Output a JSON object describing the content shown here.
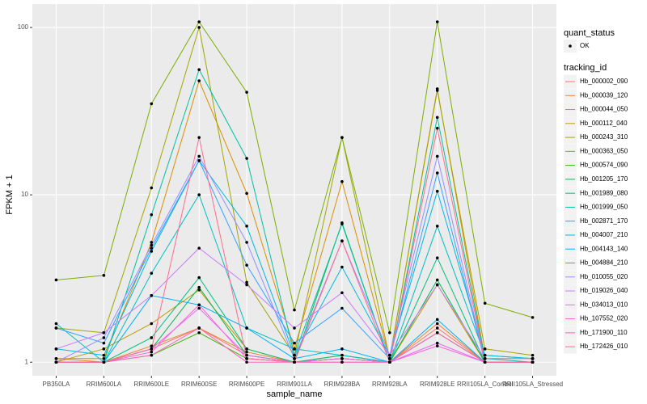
{
  "chart_data": {
    "type": "line",
    "x_label": "sample_name",
    "y_label": "FPKM + 1",
    "log_y": true,
    "grid": true,
    "categories": [
      "PB350LA",
      "RRIM600LA",
      "RRIM600LE",
      "RRIM600SE",
      "RRIM600PE",
      "RRIM901LA",
      "RRIM928BA",
      "RRIM928LA",
      "RRIM928LE",
      "RRII105LA_Control",
      "RRII105LA_Stressed"
    ],
    "ylim": [
      0.83,
      138
    ],
    "yticks": [
      1,
      10,
      100
    ],
    "shape_legend": {
      "title": "quant_status",
      "labels": [
        "OK"
      ]
    },
    "color_legend_title": "tracking_id",
    "series": [
      {
        "name": "Hb_000002_090",
        "color": "#F8766D",
        "values": [
          1.0,
          1.0,
          1.2,
          1.6,
          1.1,
          1.0,
          1.05,
          1.0,
          1.6,
          1.0,
          1.0
        ]
      },
      {
        "name": "Hb_000039_120",
        "color": "#EA8331",
        "values": [
          1.05,
          1.0,
          1.25,
          1.6,
          1.15,
          1.0,
          1.05,
          1.0,
          1.7,
          1.0,
          1.0
        ]
      },
      {
        "name": "Hb_000044_050",
        "color": "#D89000",
        "values": [
          1.05,
          1.05,
          5.2,
          48,
          10.2,
          1.2,
          12,
          1.05,
          43,
          1.05,
          1.05
        ]
      },
      {
        "name": "Hb_000112_040",
        "color": "#C09B00",
        "values": [
          1.0,
          1.2,
          1.7,
          2.7,
          1.2,
          1.0,
          1.1,
          1.0,
          2.9,
          1.0,
          1.0
        ]
      },
      {
        "name": "Hb_000243_310",
        "color": "#A3A500",
        "values": [
          1.6,
          1.5,
          11,
          100,
          3.0,
          1.1,
          22,
          1.05,
          42,
          1.2,
          1.1
        ]
      },
      {
        "name": "Hb_000363_050",
        "color": "#7CAE00",
        "values": [
          3.1,
          3.3,
          35,
          108,
          41,
          2.05,
          22,
          1.5,
          108,
          2.25,
          1.85
        ]
      },
      {
        "name": "Hb_000574_090",
        "color": "#39B600",
        "values": [
          1.0,
          1.0,
          1.1,
          1.5,
          1.05,
          1.0,
          1.05,
          1.0,
          1.5,
          1.0,
          1.0
        ]
      },
      {
        "name": "Hb_001205_170",
        "color": "#00BB4E",
        "values": [
          1.0,
          1.0,
          1.2,
          2.8,
          1.1,
          1.0,
          6.8,
          1.0,
          3.1,
          1.0,
          1.0
        ]
      },
      {
        "name": "Hb_001989_080",
        "color": "#00BF7D",
        "values": [
          1.0,
          1.0,
          1.4,
          3.2,
          1.2,
          1.0,
          1.1,
          1.0,
          4.2,
          1.0,
          1.0
        ]
      },
      {
        "name": "Hb_001999_050",
        "color": "#00C1A3",
        "values": [
          1.0,
          1.0,
          7.6,
          56,
          16.5,
          1.1,
          6.7,
          1.0,
          29,
          1.05,
          1.0
        ]
      },
      {
        "name": "Hb_002871_170",
        "color": "#00BFC4",
        "values": [
          1.7,
          1.0,
          3.4,
          10,
          1.6,
          1.2,
          1.1,
          1.0,
          6.5,
          1.1,
          1.05
        ]
      },
      {
        "name": "Hb_004007_210",
        "color": "#00BAE0",
        "values": [
          1.2,
          1.1,
          4.6,
          16,
          6.5,
          1.1,
          3.7,
          1.1,
          10.5,
          1.1,
          1.05
        ]
      },
      {
        "name": "Hb_004143_140",
        "color": "#00B0F6",
        "values": [
          1.0,
          1.0,
          2.5,
          2.2,
          1.6,
          1.05,
          1.2,
          1.0,
          1.8,
          1.0,
          1.0
        ]
      },
      {
        "name": "Hb_004884_210",
        "color": "#35A2FF",
        "values": [
          1.6,
          1.3,
          4.8,
          16,
          3.8,
          1.3,
          2.1,
          1.05,
          13.5,
          1.0,
          1.0
        ]
      },
      {
        "name": "Hb_010055_020",
        "color": "#9590FF",
        "values": [
          1.0,
          1.4,
          5.0,
          17,
          5.2,
          1.05,
          5.3,
          1.1,
          17,
          1.0,
          1.0
        ]
      },
      {
        "name": "Hb_019026_040",
        "color": "#C77CFF",
        "values": [
          1.2,
          1.5,
          2.5,
          4.8,
          2.9,
          1.6,
          2.6,
          1.1,
          2.9,
          1.05,
          1.05
        ]
      },
      {
        "name": "Hb_034013_010",
        "color": "#E76BF3",
        "values": [
          1.0,
          1.0,
          1.2,
          2.1,
          1.1,
          1.0,
          1.05,
          1.0,
          1.3,
          1.0,
          1.0
        ]
      },
      {
        "name": "Hb_107552_020",
        "color": "#FA62DB",
        "values": [
          1.0,
          1.0,
          1.15,
          2.2,
          1.05,
          1.0,
          1.0,
          1.0,
          1.25,
          1.0,
          1.0
        ]
      },
      {
        "name": "Hb_171900_110",
        "color": "#FF62BC",
        "values": [
          1.0,
          1.0,
          1.1,
          1.6,
          1.0,
          1.0,
          1.0,
          1.0,
          1.5,
          1.0,
          1.0
        ]
      },
      {
        "name": "Hb_172426_010",
        "color": "#FF6C91",
        "values": [
          1.0,
          1.0,
          1.2,
          22,
          1.05,
          1.0,
          5.3,
          1.0,
          25,
          1.0,
          1.0
        ]
      }
    ]
  }
}
